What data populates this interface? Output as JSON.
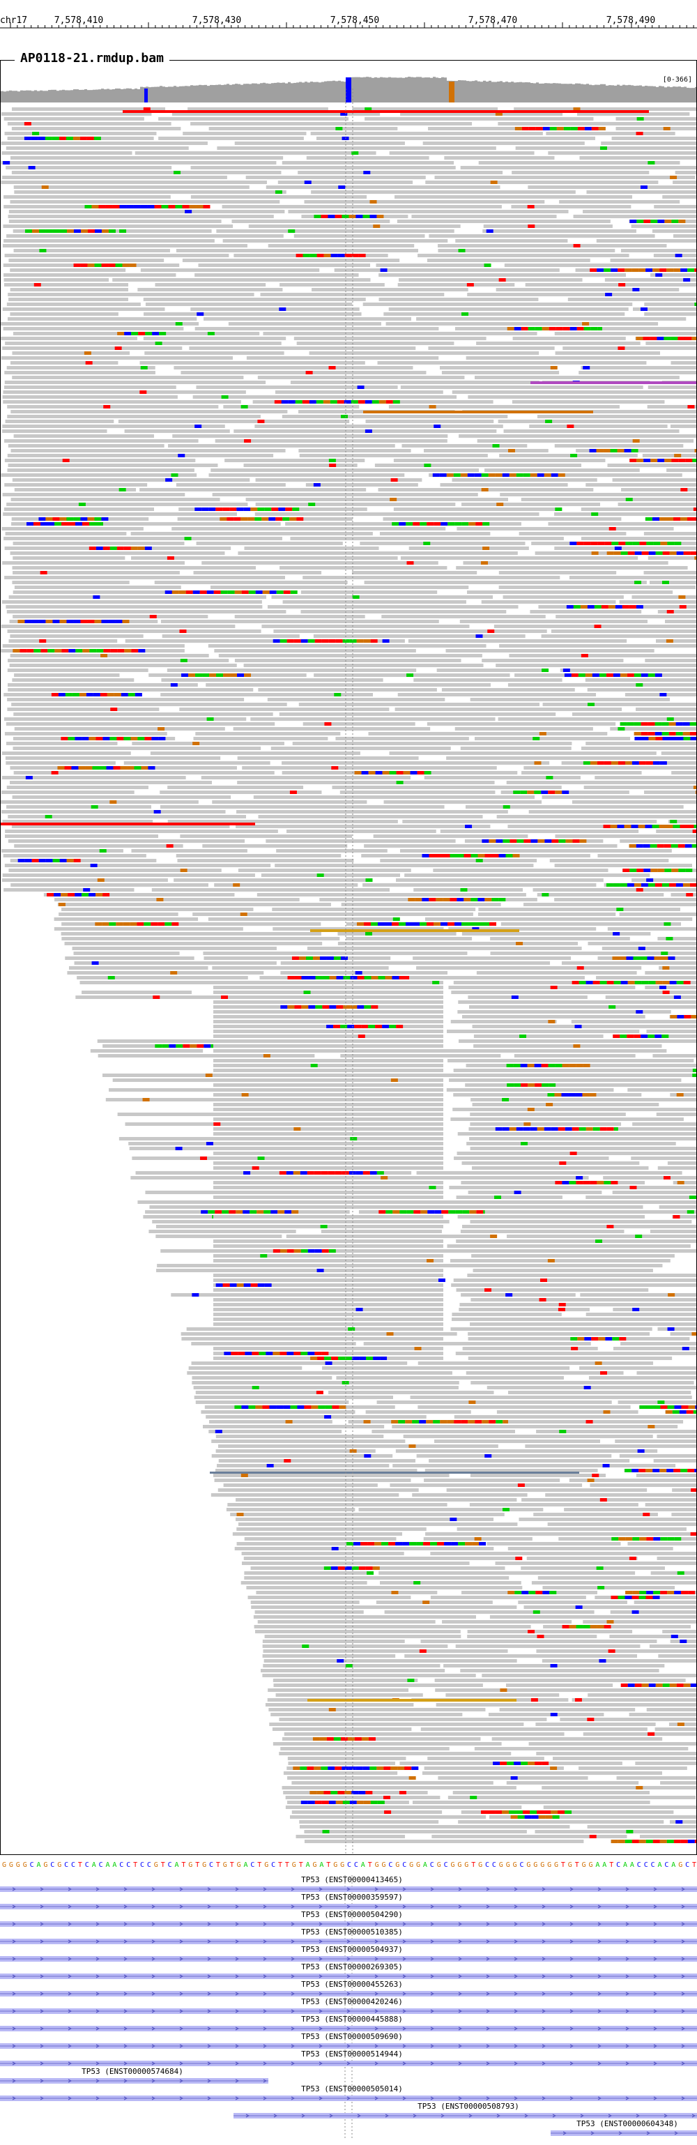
{
  "ruler": {
    "chrom": "chr17",
    "ticks": [
      "7,578,410",
      "7,578,430",
      "7,578,450",
      "7,578,470",
      "7,578,490"
    ]
  },
  "panel": {
    "title": "AP0118-21.rmdup.bam",
    "coverage_scale": "[0-366]"
  },
  "colors": {
    "read": "#c8c8c8",
    "mismatch_A": "#00d000",
    "mismatch_C": "#0000ff",
    "mismatch_G": "#d17105",
    "mismatch_T": "#ff0000",
    "insertion": "#b04bc0",
    "transcript": "#b9b9f5",
    "coverage": "#a0a0a0"
  },
  "sequence": "GGGGCAGCGCCTCACAACCTCCGTCATGTGCTGTGACTGCTTGTAGATGGCCATGGCGCGGACGCGGGTGCCGGGCGGGGGTGTGGAATCAACCCACAGCT",
  "transcripts": [
    {
      "label": "TP53 (ENST00000413465)"
    },
    {
      "label": "TP53 (ENST00000359597)"
    },
    {
      "label": "TP53 (ENST00000504290)"
    },
    {
      "label": "TP53 (ENST00000510385)"
    },
    {
      "label": "TP53 (ENST00000504937)"
    },
    {
      "label": "TP53 (ENST00000269305)"
    },
    {
      "label": "TP53 (ENST00000455263)"
    },
    {
      "label": "TP53 (ENST00000420246)"
    },
    {
      "label": "TP53 (ENST00000445888)"
    },
    {
      "label": "TP53 (ENST00000509690)"
    },
    {
      "label": "TP53 (ENST00000514944)"
    },
    {
      "label": "TP53 (ENST00000574684)"
    },
    {
      "label": "TP53 (ENST00000505014)"
    },
    {
      "label": "TP53 (ENST00000508793)"
    },
    {
      "label": "TP53 (ENST00000604348)"
    }
  ]
}
